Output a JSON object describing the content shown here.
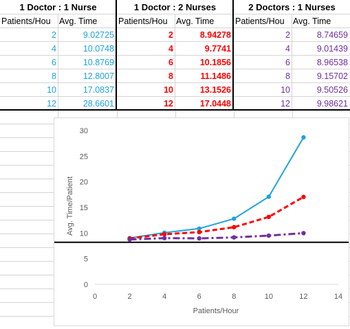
{
  "table": {
    "groups": [
      {
        "title": "1 Doctor : 1 Nurse",
        "col_patients": "Patients/Hou",
        "col_time": "Avg. Time",
        "color": "#1da3dd",
        "rows": [
          {
            "p": "2",
            "t": "9.02725"
          },
          {
            "p": "4",
            "t": "10.0748"
          },
          {
            "p": "6",
            "t": "10.8769"
          },
          {
            "p": "8",
            "t": "12.8007"
          },
          {
            "p": "10",
            "t": "17.0837"
          },
          {
            "p": "12",
            "t": "28.6601"
          }
        ]
      },
      {
        "title": "1 Doctor : 2 Nurses",
        "col_patients": "Patients/Hou",
        "col_time": "Avg. Time",
        "color": "#ff0000",
        "rows": [
          {
            "p": "2",
            "t": "8.94278"
          },
          {
            "p": "4",
            "t": "9.7741"
          },
          {
            "p": "6",
            "t": "10.1856"
          },
          {
            "p": "8",
            "t": "11.1486"
          },
          {
            "p": "10",
            "t": "13.1526"
          },
          {
            "p": "12",
            "t": "17.0448"
          }
        ]
      },
      {
        "title": "2 Doctors : 1 Nurses",
        "col_patients": "Patients/Hou",
        "col_time": "Avg. Time",
        "color": "#7030a0",
        "rows": [
          {
            "p": "2",
            "t": "8.74659"
          },
          {
            "p": "4",
            "t": "9.01439"
          },
          {
            "p": "6",
            "t": "8.96538"
          },
          {
            "p": "8",
            "t": "9.15702"
          },
          {
            "p": "10",
            "t": "9.50526"
          },
          {
            "p": "12",
            "t": "9.98621"
          }
        ]
      }
    ]
  },
  "chart_data": {
    "type": "line",
    "title": "",
    "xlabel": "Patients/Hour",
    "ylabel": "Avg. Time/Patient",
    "xlim": [
      0,
      14
    ],
    "ylim": [
      0,
      30
    ],
    "x_ticks": [
      "0",
      "2",
      "4",
      "6",
      "8",
      "10",
      "12",
      "14"
    ],
    "y_ticks": [
      "0",
      "5",
      "10",
      "15",
      "20",
      "25",
      "30"
    ],
    "grid": false,
    "reference_line_y": 8.2,
    "series": [
      {
        "x": [
          2,
          4,
          6,
          8,
          10,
          12
        ],
        "values": [
          9.02725,
          10.0748,
          10.8769,
          12.8007,
          17.0837,
          28.6601
        ],
        "color": "#1da3dd",
        "style": "solid"
      },
      {
        "x": [
          2,
          4,
          6,
          8,
          10,
          12
        ],
        "values": [
          8.94278,
          9.7741,
          10.1856,
          11.1486,
          13.1526,
          17.0448
        ],
        "color": "#ff0000",
        "style": "dash"
      },
      {
        "x": [
          2,
          4,
          6,
          8,
          10,
          12
        ],
        "values": [
          8.74659,
          9.01439,
          8.96538,
          9.15702,
          9.50526,
          9.98621
        ],
        "color": "#7030a0",
        "style": "dashdot"
      }
    ]
  }
}
